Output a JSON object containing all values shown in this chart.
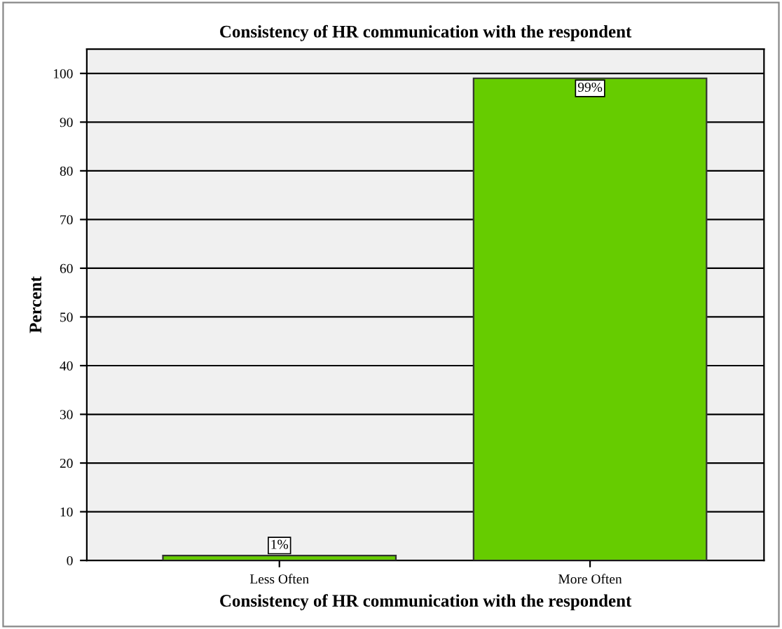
{
  "chart_data": {
    "type": "bar",
    "title": "Consistency of HR communication with the respondent",
    "xlabel": "Consistency of HR communication with the respondent",
    "ylabel": "Percent",
    "categories": [
      "Less Often",
      "More Often"
    ],
    "values": [
      1,
      99
    ],
    "value_labels": [
      "1%",
      "99%"
    ],
    "color": "#66cc00",
    "ylim": [
      0,
      105
    ],
    "yticks": [
      0,
      10,
      20,
      30,
      40,
      50,
      60,
      70,
      80,
      90,
      100
    ],
    "grid": "y"
  }
}
